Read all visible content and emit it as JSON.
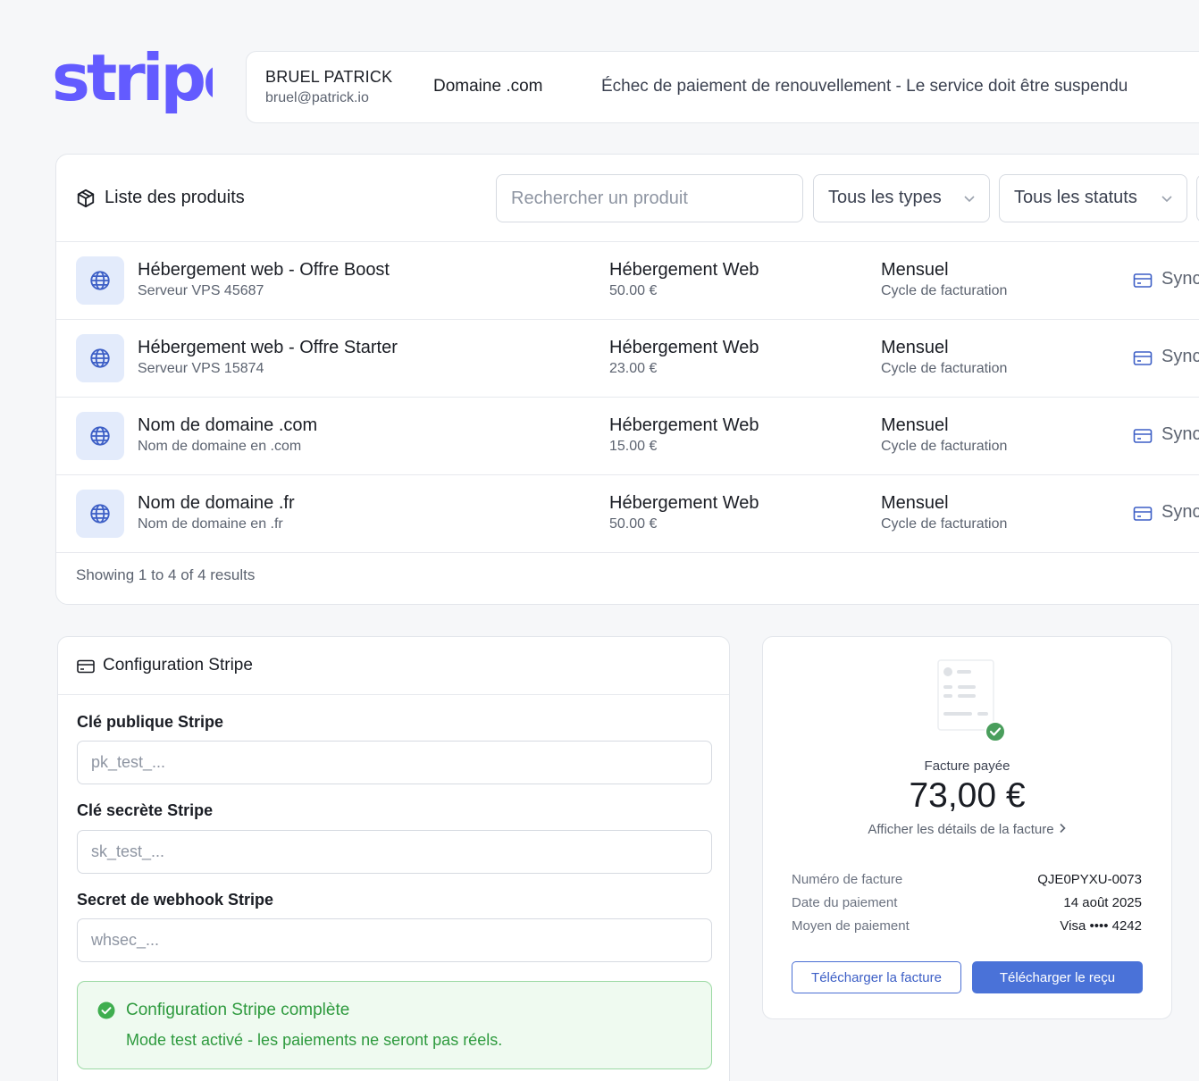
{
  "brand": {
    "logo_text": "stripe",
    "logo_color": "#635bff"
  },
  "header": {
    "customer_name": "BRUEL PATRICK",
    "customer_email": "bruel@patrick.io",
    "domain": "Domaine .com",
    "status_message": "Échec de paiement de renouvellement - Le service doit être suspendu"
  },
  "products": {
    "title": "Liste des produits",
    "search_placeholder": "Rechercher un produit",
    "filter_types": "Tous les types",
    "filter_statuses": "Tous les statuts",
    "rows": [
      {
        "name": "Hébergement web - Offre Boost",
        "subtitle": "Serveur VPS 45687",
        "type": "Hébergement Web",
        "price": "50.00 €",
        "cycle": "Mensuel",
        "cycle_label": "Cycle de facturation",
        "action": "Sync"
      },
      {
        "name": "Hébergement web - Offre Starter",
        "subtitle": "Serveur VPS 15874",
        "type": "Hébergement Web",
        "price": "23.00 €",
        "cycle": "Mensuel",
        "cycle_label": "Cycle de facturation",
        "action": "Sync"
      },
      {
        "name": "Nom de domaine .com",
        "subtitle": "Nom de domaine en .com",
        "type": "Hébergement Web",
        "price": "15.00 €",
        "cycle": "Mensuel",
        "cycle_label": "Cycle de facturation",
        "action": "Sync"
      },
      {
        "name": "Nom de domaine .fr",
        "subtitle": "Nom de domaine en .fr",
        "type": "Hébergement Web",
        "price": "50.00 €",
        "cycle": "Mensuel",
        "cycle_label": "Cycle de facturation",
        "action": "Sync"
      }
    ],
    "footer": "Showing 1 to 4 of 4 results"
  },
  "config": {
    "title": "Configuration Stripe",
    "public_key_label": "Clé publique Stripe",
    "public_key_placeholder": "pk_test_...",
    "secret_key_label": "Clé secrète Stripe",
    "secret_key_placeholder": "sk_test_...",
    "webhook_label": "Secret de webhook Stripe",
    "webhook_placeholder": "whsec_...",
    "success_title": "Configuration Stripe complète",
    "success_message": "Mode test activé - les paiements ne seront pas réels."
  },
  "invoice": {
    "status_label": "Facture payée",
    "amount": "73,00 €",
    "details_link": "Afficher les détails de la facture",
    "fields": [
      {
        "key": "Numéro de facture",
        "value": "QJE0PYXU-0073"
      },
      {
        "key": "Date du paiement",
        "value": "14 août 2025"
      },
      {
        "key": "Moyen de paiement",
        "value": "Visa •••• 4242"
      }
    ],
    "download_invoice": "Télécharger la facture",
    "download_receipt": "Télécharger le reçu"
  },
  "icons": {
    "product_list": "package-icon",
    "product_row": "globe-icon",
    "sync": "credit-card-icon",
    "config": "credit-card-icon",
    "success": "check-circle-icon",
    "invoice": "invoice-paid-icon"
  }
}
